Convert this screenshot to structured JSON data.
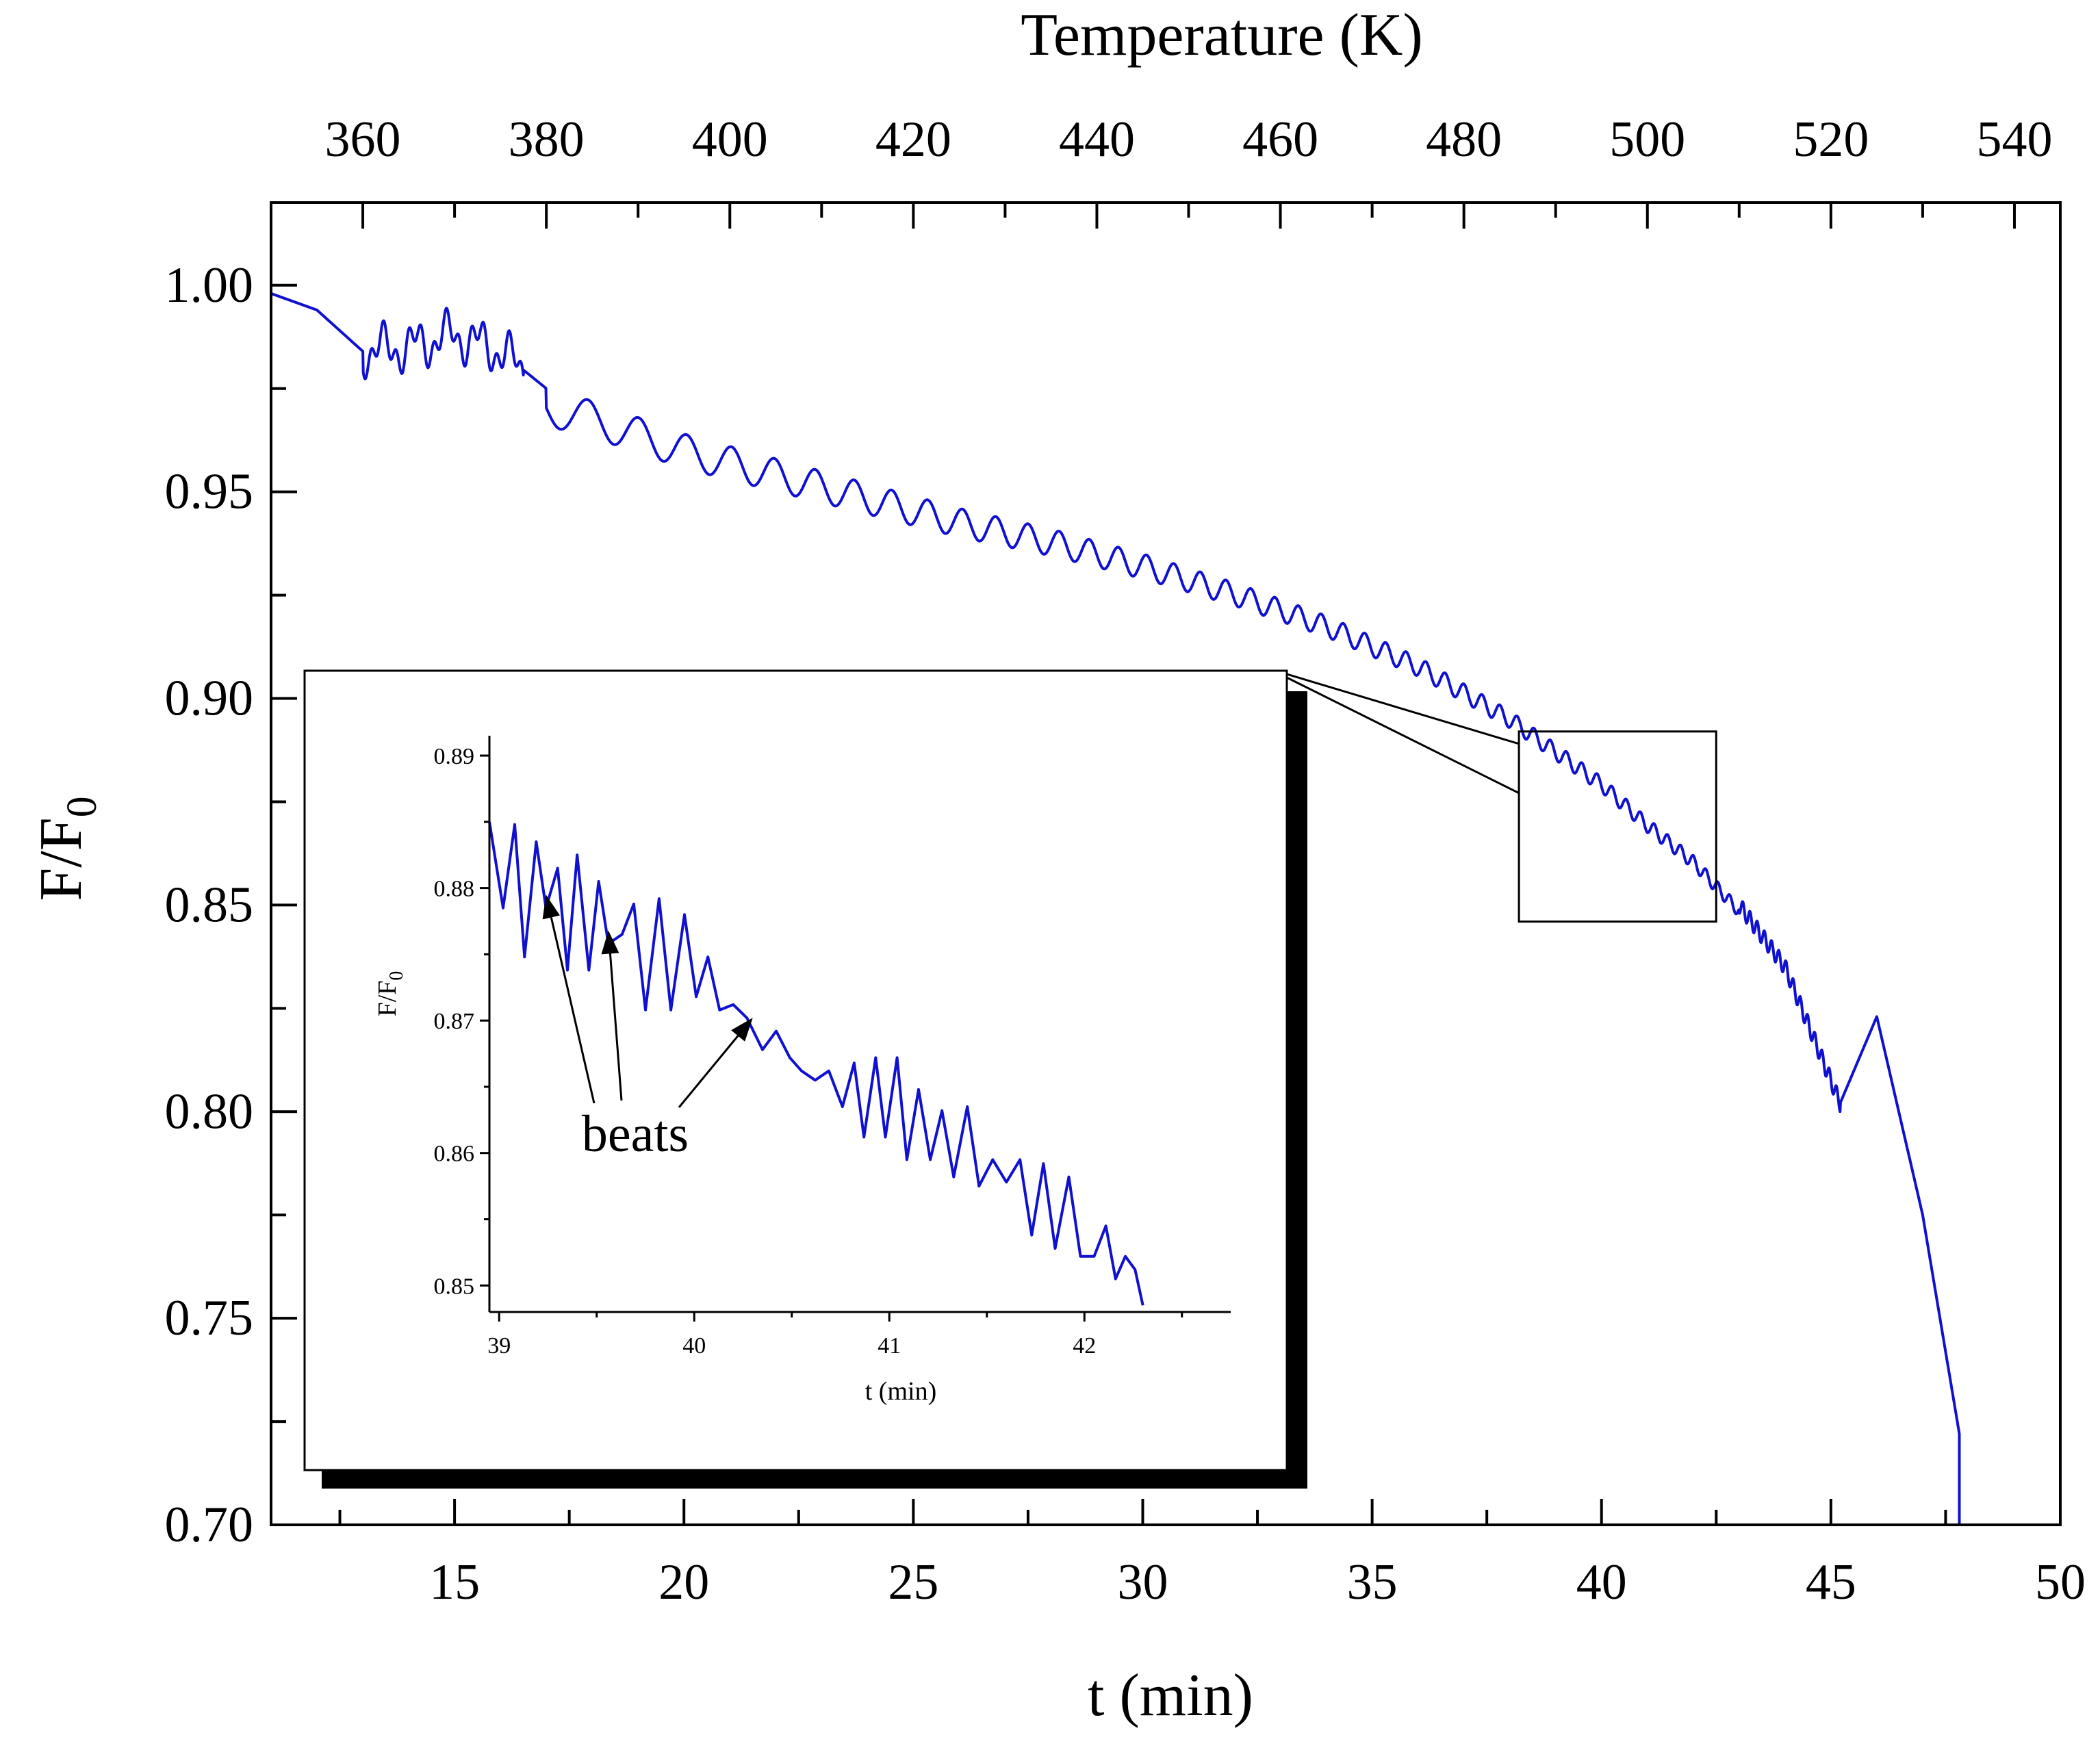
{
  "chart_data": [
    {
      "id": "main",
      "type": "line",
      "xlabel": "t (min)",
      "ylabel": "F/F",
      "ylabel_subscript": "0",
      "x2label": "Temperature (K)",
      "xlim": [
        11,
        50
      ],
      "ylim": [
        0.7,
        1.02
      ],
      "x_ticks": [
        15,
        20,
        25,
        30,
        35,
        40,
        45,
        50
      ],
      "x_tick_labels": [
        "15",
        "20",
        "25",
        "30",
        "35",
        "40",
        "45",
        "50"
      ],
      "x2_ticks": [
        360,
        380,
        400,
        420,
        440,
        460,
        480,
        500,
        520,
        540
      ],
      "x2_tick_labels": [
        "360",
        "380",
        "400",
        "420",
        "440",
        "460",
        "480",
        "500",
        "520",
        "540"
      ],
      "x2_lim": [
        350,
        545
      ],
      "y_ticks": [
        1.0,
        0.95,
        0.9,
        0.85,
        0.8,
        0.75,
        0.7
      ],
      "y_tick_labels": [
        "1.00",
        "0.95",
        "0.90",
        "0.85",
        "0.80",
        "0.75",
        "0.70"
      ],
      "series": [
        {
          "name": "F/F0",
          "color": "#1010d0",
          "baseline_x": [
            11,
            12,
            13,
            14,
            15,
            16,
            17,
            18,
            20,
            22,
            24,
            26,
            28,
            30,
            32,
            34,
            36,
            38,
            39,
            40,
            41,
            42,
            43,
            44,
            45.2,
            46,
            47,
            47.8
          ],
          "baseline_y": [
            0.998,
            0.994,
            0.984,
            0.985,
            0.988,
            0.984,
            0.975,
            0.972,
            0.964,
            0.958,
            0.952,
            0.946,
            0.941,
            0.935,
            0.928,
            0.92,
            0.91,
            0.897,
            0.889,
            0.881,
            0.871,
            0.862,
            0.85,
            0.835,
            0.802,
            0.823,
            0.775,
            0.722
          ],
          "oscillation_start_min": 17,
          "oscillation_amplitude_start": 0.009,
          "oscillation_amplitude_end": 0.003,
          "oscillation_period_start_min": 1.3,
          "oscillation_period_end_min": 0.25,
          "segment_end_x": 47.8,
          "segment_end_y": 0.7
        }
      ],
      "zoom_box": {
        "x": [
          38.2,
          42.5
        ],
        "y": [
          0.846,
          0.892
        ]
      }
    },
    {
      "id": "inset",
      "type": "line",
      "xlabel": "t (min)",
      "ylabel": "F/F",
      "ylabel_subscript": "0",
      "xlim": [
        38.95,
        42.75
      ],
      "ylim": [
        0.848,
        0.8915
      ],
      "x_ticks": [
        39,
        40,
        41,
        42
      ],
      "x_tick_labels": [
        "39",
        "40",
        "41",
        "42"
      ],
      "y_ticks": [
        0.85,
        0.86,
        0.87,
        0.88,
        0.89
      ],
      "y_tick_labels": [
        "0.85",
        "0.86",
        "0.87",
        "0.88",
        "0.89"
      ],
      "series": [
        {
          "name": "F/F0 (zoom)",
          "color": "#1010d0",
          "x": [
            38.95,
            39.02,
            39.08,
            39.13,
            39.19,
            39.24,
            39.3,
            39.35,
            39.4,
            39.46,
            39.51,
            39.56,
            39.63,
            39.69,
            39.75,
            39.82,
            39.88,
            39.95,
            40.01,
            40.07,
            40.13,
            40.2,
            40.27,
            40.35,
            40.42,
            40.49,
            40.55,
            40.62,
            40.69,
            40.76,
            40.82,
            40.87,
            40.93,
            40.98,
            41.04,
            41.09,
            41.15,
            41.21,
            41.27,
            41.33,
            41.4,
            41.46,
            41.53,
            41.6,
            41.67,
            41.73,
            41.79,
            41.85,
            41.92,
            41.98,
            42.05,
            42.11,
            42.16,
            42.21,
            42.26,
            42.3
          ],
          "y": [
            0.885,
            0.8785,
            0.8848,
            0.8748,
            0.8835,
            0.8785,
            0.8815,
            0.8738,
            0.8825,
            0.8738,
            0.8805,
            0.8758,
            0.8765,
            0.8788,
            0.8708,
            0.8792,
            0.8708,
            0.878,
            0.8718,
            0.8748,
            0.8708,
            0.8712,
            0.8702,
            0.8678,
            0.8692,
            0.8672,
            0.8662,
            0.8655,
            0.8662,
            0.8635,
            0.8668,
            0.8612,
            0.8672,
            0.8612,
            0.8672,
            0.8595,
            0.8648,
            0.8595,
            0.8632,
            0.8582,
            0.8635,
            0.8575,
            0.8595,
            0.8578,
            0.8595,
            0.8538,
            0.8592,
            0.8528,
            0.8582,
            0.8522,
            0.8522,
            0.8545,
            0.8505,
            0.8522,
            0.8512,
            0.8485
          ]
        }
      ],
      "annotation": {
        "text": "beats",
        "arrow_targets": [
          {
            "x": 39.24,
            "y": 0.8795
          },
          {
            "x": 39.56,
            "y": 0.8768
          },
          {
            "x": 40.3,
            "y": 0.8702
          }
        ]
      }
    }
  ]
}
